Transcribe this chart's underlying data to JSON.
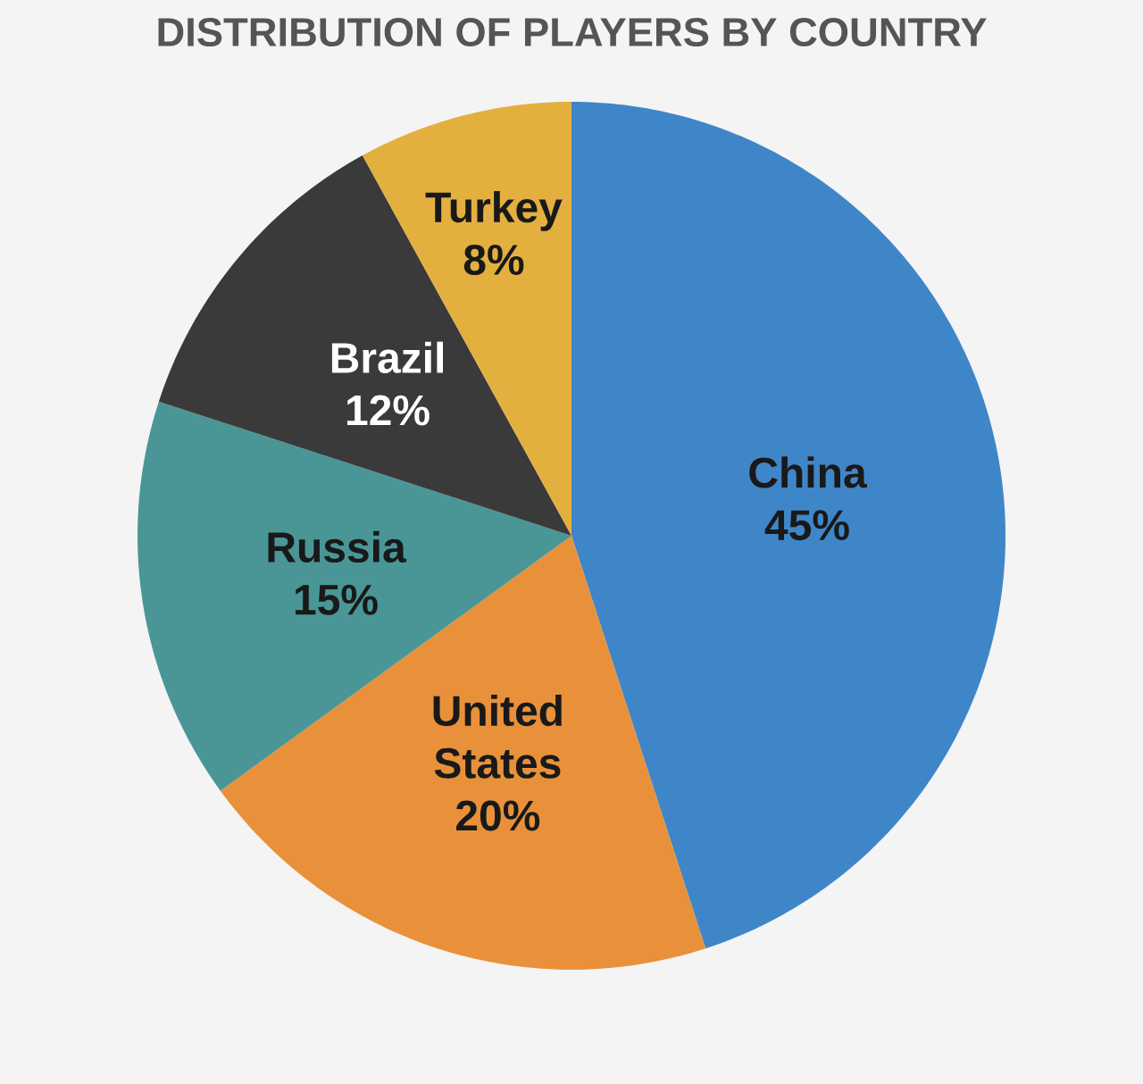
{
  "chart_data": {
    "type": "pie",
    "title": "DISTRIBUTION OF PLAYERS BY COUNTRY",
    "categories": [
      "China",
      "United States",
      "Russia",
      "Brazil",
      "Turkey"
    ],
    "values": [
      45,
      20,
      15,
      12,
      8
    ],
    "value_labels": [
      "45%",
      "20%",
      "15%",
      "12%",
      "8%"
    ],
    "colors": [
      "#3f86c8",
      "#e8913a",
      "#4a9696",
      "#3a3a3a",
      "#e3b040"
    ]
  }
}
